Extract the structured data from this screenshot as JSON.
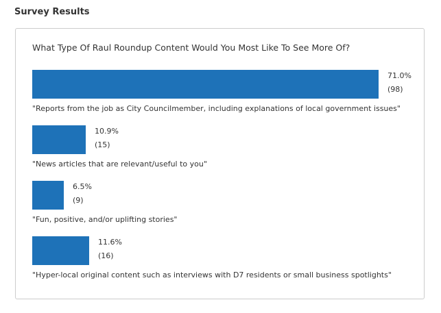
{
  "page": {
    "section_title": "Survey Results"
  },
  "chart_data": {
    "type": "bar",
    "orientation": "horizontal",
    "title": "What Type Of Raul Roundup Content Would You Most Like To See More Of?",
    "categories": [
      "\"Reports from the job as City Councilmember, including explanations of local government issues\"",
      "\"News articles that are relevant/useful to you\"",
      "\"Fun, positive, and/or uplifting stories\"",
      "\"Hyper-local original content such as interviews with D7 residents or small business spotlights\""
    ],
    "values": [
      71.0,
      10.9,
      6.5,
      11.6
    ],
    "counts": [
      98,
      15,
      9,
      16
    ],
    "percent_labels": [
      "71.0%",
      "10.9%",
      "6.5%",
      "11.6%"
    ],
    "count_labels": [
      "(98)",
      "(15)",
      "(9)",
      "(16)"
    ],
    "bar_color": "#1e72b8",
    "grid": false,
    "legend": "none"
  }
}
